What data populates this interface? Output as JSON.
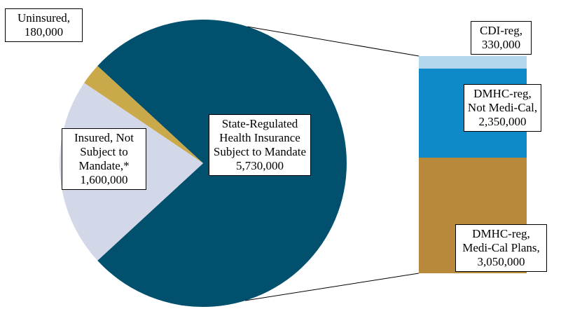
{
  "chart_data": [
    {
      "type": "pie",
      "categories": [
        "State-Regulated Health Insurance Subject to Mandate",
        "Uninsured,",
        "Insured, Not Subject to Mandate,*"
      ],
      "values": [
        5730000,
        180000,
        1600000
      ],
      "value_labels": [
        "5,730,000",
        "180,000",
        "1,600,000"
      ],
      "colors": [
        "#00506e",
        "#c9a94a",
        "#d3d8e8"
      ]
    },
    {
      "type": "stacked-bar",
      "categories": [
        "CDI-reg,",
        "DMHC-reg, Not Medi-Cal,",
        "DMHC-reg, Medi-Cal Plans,"
      ],
      "values": [
        330000,
        2350000,
        3050000
      ],
      "value_labels": [
        "330,000",
        "2,350,000",
        "3,050,000"
      ],
      "colors": [
        "#b4d7ee",
        "#0e8ac8",
        "#b8893a"
      ]
    }
  ]
}
